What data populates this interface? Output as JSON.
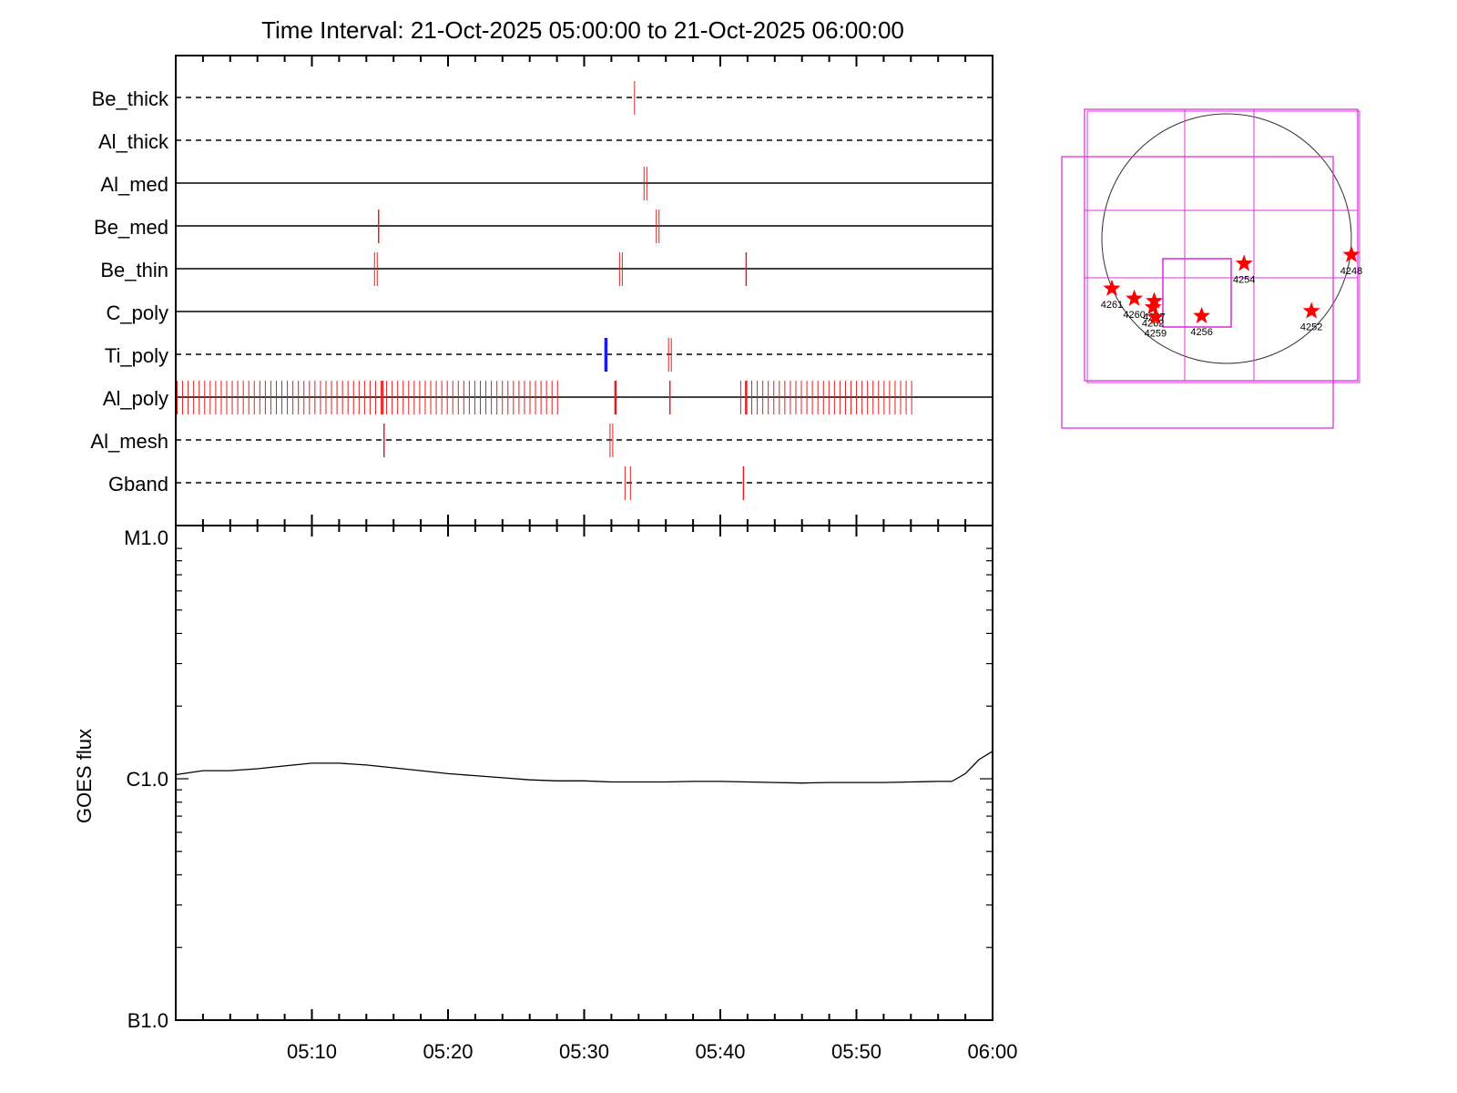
{
  "chart_data": [
    {
      "type": "event-timeline",
      "title": "Time Interval: 21-Oct-2025 05:00:00 to 21-Oct-2025 06:00:00",
      "x_range": [
        "05:00",
        "06:00"
      ],
      "tracks": [
        {
          "name": "Be_thick",
          "line": "dashed",
          "events": [
            {
              "t": 33.7,
              "color": "#e02020",
              "w": 1
            }
          ]
        },
        {
          "name": "Al_thick",
          "line": "dashed",
          "events": []
        },
        {
          "name": "Al_med",
          "line": "solid",
          "events": [
            {
              "t": 34.4,
              "color": "#e02020",
              "w": 1
            },
            {
              "t": 34.6,
              "color": "#e02020",
              "w": 1
            }
          ]
        },
        {
          "name": "Be_med",
          "line": "solid",
          "events": [
            {
              "t": 14.9,
              "color": "#e02020",
              "w": 1.5
            },
            {
              "t": 35.3,
              "color": "#e02020",
              "w": 1
            },
            {
              "t": 35.5,
              "color": "#e02020",
              "w": 1
            }
          ]
        },
        {
          "name": "Be_thin",
          "line": "solid",
          "events": [
            {
              "t": 14.6,
              "color": "#e02020",
              "w": 1
            },
            {
              "t": 14.8,
              "color": "#e02020",
              "w": 1
            },
            {
              "t": 32.6,
              "color": "#e02020",
              "w": 1
            },
            {
              "t": 32.8,
              "color": "#e02020",
              "w": 1
            },
            {
              "t": 41.9,
              "color": "#e02020",
              "w": 1.5
            }
          ]
        },
        {
          "name": "C_poly",
          "line": "solid",
          "events": []
        },
        {
          "name": "Ti_poly",
          "line": "dashed",
          "events": [
            {
              "t": 31.6,
              "color": "#1a1aee",
              "w": 3.5
            },
            {
              "t": 36.2,
              "color": "#e02020",
              "w": 1
            },
            {
              "t": 36.4,
              "color": "#e02020",
              "w": 1
            }
          ]
        },
        {
          "name": "Al_poly",
          "line": "solid",
          "events": [
            {
              "t": 32.3,
              "color": "#e02020",
              "w": 2.5
            },
            {
              "t": 36.3,
              "color": "#e02020",
              "w": 1.5
            },
            {
              "t": 15.2,
              "color": "#e02020",
              "w": 2
            },
            {
              "t": 41.9,
              "color": "#e02020",
              "w": 2.5
            }
          ],
          "periodic": [
            {
              "start": 0.1,
              "end": 28.2,
              "step": 0.405,
              "color": "#e02020",
              "w": 1
            },
            {
              "start": 41.5,
              "end": 54.2,
              "step": 0.405,
              "color": "#e02020",
              "w": 1
            }
          ]
        },
        {
          "name": "Al_mesh",
          "line": "dashed",
          "events": [
            {
              "t": 15.3,
              "color": "#e02020",
              "w": 1.5
            },
            {
              "t": 31.9,
              "color": "#e02020",
              "w": 1
            },
            {
              "t": 32.1,
              "color": "#e02020",
              "w": 1
            }
          ]
        },
        {
          "name": "Gband",
          "line": "dashed",
          "events": [
            {
              "t": 33.0,
              "color": "#e02020",
              "w": 1
            },
            {
              "t": 33.4,
              "color": "#e02020",
              "w": 1
            },
            {
              "t": 41.7,
              "color": "#e02020",
              "w": 1.5
            }
          ]
        }
      ]
    },
    {
      "type": "line",
      "ylabel": "GOES flux",
      "yscale": "log",
      "y_ticks": [
        {
          "value": 1e-07,
          "label": "B1.0"
        },
        {
          "value": 1e-06,
          "label": "C1.0"
        },
        {
          "value": 1e-05,
          "label": "M1.0"
        }
      ],
      "ylim": [
        1e-07,
        1e-05
      ],
      "x_range": [
        "05:00",
        "06:00"
      ],
      "x_ticks": [
        "05:10",
        "05:20",
        "05:30",
        "05:40",
        "05:50",
        "06:00"
      ],
      "series": [
        {
          "color": "#000000",
          "x": [
            0,
            2,
            4,
            6,
            8,
            10,
            12,
            14,
            16,
            18,
            20,
            22,
            24,
            26,
            28,
            30,
            32,
            34,
            36,
            38,
            40,
            42,
            44,
            46,
            48,
            50,
            52,
            54,
            56,
            57,
            58,
            59,
            60
          ],
          "y": [
            1.04e-06,
            1.08e-06,
            1.08e-06,
            1.1e-06,
            1.13e-06,
            1.16e-06,
            1.16e-06,
            1.14e-06,
            1.11e-06,
            1.08e-06,
            1.05e-06,
            1.03e-06,
            1.01e-06,
            9.9e-07,
            9.8e-07,
            9.8e-07,
            9.7e-07,
            9.7e-07,
            9.7e-07,
            9.75e-07,
            9.75e-07,
            9.7e-07,
            9.65e-07,
            9.6e-07,
            9.65e-07,
            9.65e-07,
            9.65e-07,
            9.7e-07,
            9.75e-07,
            9.75e-07,
            1.05e-06,
            1.2e-06,
            1.3e-06
          ]
        }
      ]
    },
    {
      "type": "map",
      "active_regions": [
        {
          "label": "4261",
          "x": -0.92,
          "y": -0.4
        },
        {
          "label": "4260",
          "x": -0.74,
          "y": -0.48
        },
        {
          "label": "4257",
          "x": -0.58,
          "y": -0.5
        },
        {
          "label": "4262",
          "x": -0.59,
          "y": -0.55
        },
        {
          "label": "4259",
          "x": -0.57,
          "y": -0.63
        },
        {
          "label": "4256",
          "x": -0.2,
          "y": -0.62
        },
        {
          "label": "4254",
          "x": 0.14,
          "y": -0.2
        },
        {
          "label": "4252",
          "x": 0.68,
          "y": -0.58
        },
        {
          "label": "4248",
          "x": 1.0,
          "y": -0.13
        }
      ]
    }
  ],
  "colors": {
    "axes": "#000000",
    "event": "#e02020",
    "event_alt": "#1a1aee",
    "fov": "#dd33dd",
    "star": "#ff0000"
  }
}
